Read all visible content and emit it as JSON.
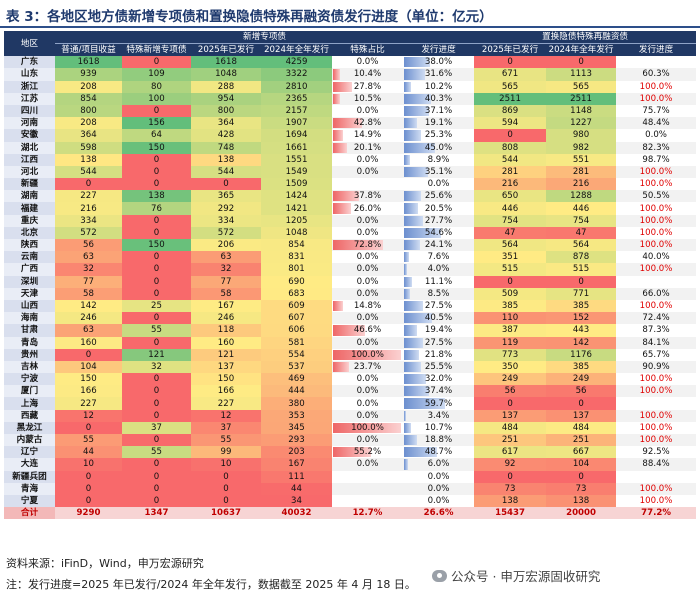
{
  "title": "表 3：各地区地方债新增专项债和置换隐债特殊再融资债发行进度（单位：亿元）",
  "header": {
    "region": "地区",
    "group_new": "新增专项债",
    "group_repl": "置换隐债特殊再融资债",
    "cols": [
      "普通/项目收益",
      "特殊新增专项债",
      "2025年已发行",
      "2024年全年发行",
      "特殊占比",
      "发行进度",
      "2025年已发行",
      "2024年全年发行",
      "发行进度"
    ]
  },
  "rows": [
    {
      "region": "广东",
      "ord": "1618",
      "spec": "0",
      "i25": "1618",
      "y24": "4259",
      "share": "0.0%",
      "prog": "38.0%",
      "r25": "0",
      "r24": "0",
      "rprog": ""
    },
    {
      "region": "山东",
      "ord": "939",
      "spec": "109",
      "i25": "1048",
      "y24": "3322",
      "share": "10.4%",
      "prog": "31.6%",
      "r25": "671",
      "r24": "1113",
      "rprog": "60.3%"
    },
    {
      "region": "浙江",
      "ord": "208",
      "spec": "80",
      "i25": "288",
      "y24": "2810",
      "share": "27.8%",
      "prog": "10.2%",
      "r25": "565",
      "r24": "565",
      "rprog": "100.0%"
    },
    {
      "region": "江苏",
      "ord": "854",
      "spec": "100",
      "i25": "954",
      "y24": "2365",
      "share": "10.5%",
      "prog": "40.3%",
      "r25": "2511",
      "r24": "2511",
      "rprog": "100.0%"
    },
    {
      "region": "四川",
      "ord": "800",
      "spec": "0",
      "i25": "800",
      "y24": "2157",
      "share": "0.0%",
      "prog": "37.1%",
      "r25": "869",
      "r24": "1148",
      "rprog": "75.7%"
    },
    {
      "region": "河南",
      "ord": "208",
      "spec": "156",
      "i25": "364",
      "y24": "1907",
      "share": "42.8%",
      "prog": "19.1%",
      "r25": "594",
      "r24": "1227",
      "rprog": "48.4%"
    },
    {
      "region": "安徽",
      "ord": "364",
      "spec": "64",
      "i25": "428",
      "y24": "1694",
      "share": "14.9%",
      "prog": "25.3%",
      "r25": "0",
      "r24": "980",
      "rprog": "0.0%"
    },
    {
      "region": "湖北",
      "ord": "598",
      "spec": "150",
      "i25": "748",
      "y24": "1661",
      "share": "20.1%",
      "prog": "45.0%",
      "r25": "808",
      "r24": "982",
      "rprog": "82.3%"
    },
    {
      "region": "江西",
      "ord": "138",
      "spec": "0",
      "i25": "138",
      "y24": "1551",
      "share": "0.0%",
      "prog": "8.9%",
      "r25": "544",
      "r24": "551",
      "rprog": "98.7%"
    },
    {
      "region": "河北",
      "ord": "544",
      "spec": "0",
      "i25": "544",
      "y24": "1549",
      "share": "0.0%",
      "prog": "35.1%",
      "r25": "281",
      "r24": "281",
      "rprog": "100.0%"
    },
    {
      "region": "新疆",
      "ord": "0",
      "spec": "0",
      "i25": "0",
      "y24": "1509",
      "share": "",
      "prog": "0.0%",
      "r25": "216",
      "r24": "216",
      "rprog": "100.0%"
    },
    {
      "region": "湖南",
      "ord": "227",
      "spec": "138",
      "i25": "365",
      "y24": "1424",
      "share": "37.8%",
      "prog": "25.6%",
      "r25": "650",
      "r24": "1288",
      "rprog": "50.5%"
    },
    {
      "region": "福建",
      "ord": "216",
      "spec": "76",
      "i25": "292",
      "y24": "1421",
      "share": "26.0%",
      "prog": "20.5%",
      "r25": "446",
      "r24": "446",
      "rprog": "100.0%"
    },
    {
      "region": "重庆",
      "ord": "334",
      "spec": "0",
      "i25": "334",
      "y24": "1205",
      "share": "0.0%",
      "prog": "27.7%",
      "r25": "754",
      "r24": "754",
      "rprog": "100.0%"
    },
    {
      "region": "北京",
      "ord": "572",
      "spec": "0",
      "i25": "572",
      "y24": "1048",
      "share": "0.0%",
      "prog": "54.6%",
      "r25": "47",
      "r24": "47",
      "rprog": "100.0%"
    },
    {
      "region": "陕西",
      "ord": "56",
      "spec": "150",
      "i25": "206",
      "y24": "854",
      "share": "72.8%",
      "prog": "24.1%",
      "r25": "564",
      "r24": "564",
      "rprog": "100.0%"
    },
    {
      "region": "云南",
      "ord": "63",
      "spec": "0",
      "i25": "63",
      "y24": "831",
      "share": "0.0%",
      "prog": "7.6%",
      "r25": "351",
      "r24": "878",
      "rprog": "40.0%"
    },
    {
      "region": "广西",
      "ord": "32",
      "spec": "0",
      "i25": "32",
      "y24": "801",
      "share": "0.0%",
      "prog": "4.0%",
      "r25": "515",
      "r24": "515",
      "rprog": "100.0%"
    },
    {
      "region": "深圳",
      "ord": "77",
      "spec": "0",
      "i25": "77",
      "y24": "690",
      "share": "0.0%",
      "prog": "11.1%",
      "r25": "0",
      "r24": "0",
      "rprog": ""
    },
    {
      "region": "天津",
      "ord": "58",
      "spec": "0",
      "i25": "58",
      "y24": "683",
      "share": "0.0%",
      "prog": "8.5%",
      "r25": "509",
      "r24": "771",
      "rprog": "66.0%"
    },
    {
      "region": "山西",
      "ord": "142",
      "spec": "25",
      "i25": "167",
      "y24": "609",
      "share": "14.8%",
      "prog": "27.5%",
      "r25": "385",
      "r24": "385",
      "rprog": "100.0%"
    },
    {
      "region": "海南",
      "ord": "246",
      "spec": "0",
      "i25": "246",
      "y24": "607",
      "share": "0.0%",
      "prog": "40.5%",
      "r25": "110",
      "r24": "152",
      "rprog": "72.4%"
    },
    {
      "region": "甘肃",
      "ord": "63",
      "spec": "55",
      "i25": "118",
      "y24": "606",
      "share": "46.6%",
      "prog": "19.4%",
      "r25": "387",
      "r24": "443",
      "rprog": "87.3%"
    },
    {
      "region": "青岛",
      "ord": "160",
      "spec": "0",
      "i25": "160",
      "y24": "581",
      "share": "0.0%",
      "prog": "27.5%",
      "r25": "119",
      "r24": "142",
      "rprog": "84.1%"
    },
    {
      "region": "贵州",
      "ord": "0",
      "spec": "121",
      "i25": "121",
      "y24": "554",
      "share": "100.0%",
      "prog": "21.8%",
      "r25": "773",
      "r24": "1176",
      "rprog": "65.7%"
    },
    {
      "region": "吉林",
      "ord": "104",
      "spec": "32",
      "i25": "137",
      "y24": "537",
      "share": "23.7%",
      "prog": "25.5%",
      "r25": "350",
      "r24": "385",
      "rprog": "90.9%"
    },
    {
      "region": "宁波",
      "ord": "150",
      "spec": "0",
      "i25": "150",
      "y24": "469",
      "share": "0.0%",
      "prog": "32.0%",
      "r25": "249",
      "r24": "249",
      "rprog": "100.0%"
    },
    {
      "region": "厦门",
      "ord": "166",
      "spec": "0",
      "i25": "166",
      "y24": "444",
      "share": "0.0%",
      "prog": "37.4%",
      "r25": "56",
      "r24": "56",
      "rprog": "100.0%"
    },
    {
      "region": "上海",
      "ord": "227",
      "spec": "0",
      "i25": "227",
      "y24": "380",
      "share": "0.0%",
      "prog": "59.7%",
      "r25": "0",
      "r24": "0",
      "rprog": ""
    },
    {
      "region": "西藏",
      "ord": "12",
      "spec": "0",
      "i25": "12",
      "y24": "353",
      "share": "0.0%",
      "prog": "3.4%",
      "r25": "137",
      "r24": "137",
      "rprog": "100.0%"
    },
    {
      "region": "黑龙江",
      "ord": "0",
      "spec": "37",
      "i25": "37",
      "y24": "345",
      "share": "100.0%",
      "prog": "10.7%",
      "r25": "484",
      "r24": "484",
      "rprog": "100.0%"
    },
    {
      "region": "内蒙古",
      "ord": "55",
      "spec": "0",
      "i25": "55",
      "y24": "293",
      "share": "0.0%",
      "prog": "18.8%",
      "r25": "251",
      "r24": "251",
      "rprog": "100.0%"
    },
    {
      "region": "辽宁",
      "ord": "44",
      "spec": "55",
      "i25": "99",
      "y24": "203",
      "share": "55.2%",
      "prog": "48.7%",
      "r25": "617",
      "r24": "667",
      "rprog": "92.5%"
    },
    {
      "region": "大连",
      "ord": "10",
      "spec": "0",
      "i25": "10",
      "y24": "167",
      "share": "0.0%",
      "prog": "6.0%",
      "r25": "92",
      "r24": "104",
      "rprog": "88.4%"
    },
    {
      "region": "新疆兵团",
      "ord": "0",
      "spec": "0",
      "i25": "0",
      "y24": "111",
      "share": "",
      "prog": "0.0%",
      "r25": "0",
      "r24": "0",
      "rprog": ""
    },
    {
      "region": "青海",
      "ord": "0",
      "spec": "0",
      "i25": "0",
      "y24": "44",
      "share": "",
      "prog": "0.0%",
      "r25": "73",
      "r24": "73",
      "rprog": "100.0%"
    },
    {
      "region": "宁夏",
      "ord": "0",
      "spec": "0",
      "i25": "0",
      "y24": "34",
      "share": "",
      "prog": "0.0%",
      "r25": "138",
      "r24": "138",
      "rprog": "100.0%"
    }
  ],
  "total": {
    "region": "合计",
    "ord": "9290",
    "spec": "1347",
    "i25": "10637",
    "y24": "40032",
    "share": "12.7%",
    "prog": "26.6%",
    "r25": "15437",
    "r24": "20000",
    "rprog": "77.2%"
  },
  "source": "资料来源：iFinD，Wind，申万宏源研究",
  "note": "注：发行进度=2025 年已发行/2024 年全年发行，数据截至 2025 年 4 月 18 日。",
  "watermark": {
    "icon": "wechat-icon",
    "text": "公众号 · 申万宏源固收研究"
  },
  "colors": {
    "header": "#203864",
    "bar_share": "#ee6666",
    "bar_progress": "#6c8fcf",
    "highlight_red": "#e00000"
  }
}
